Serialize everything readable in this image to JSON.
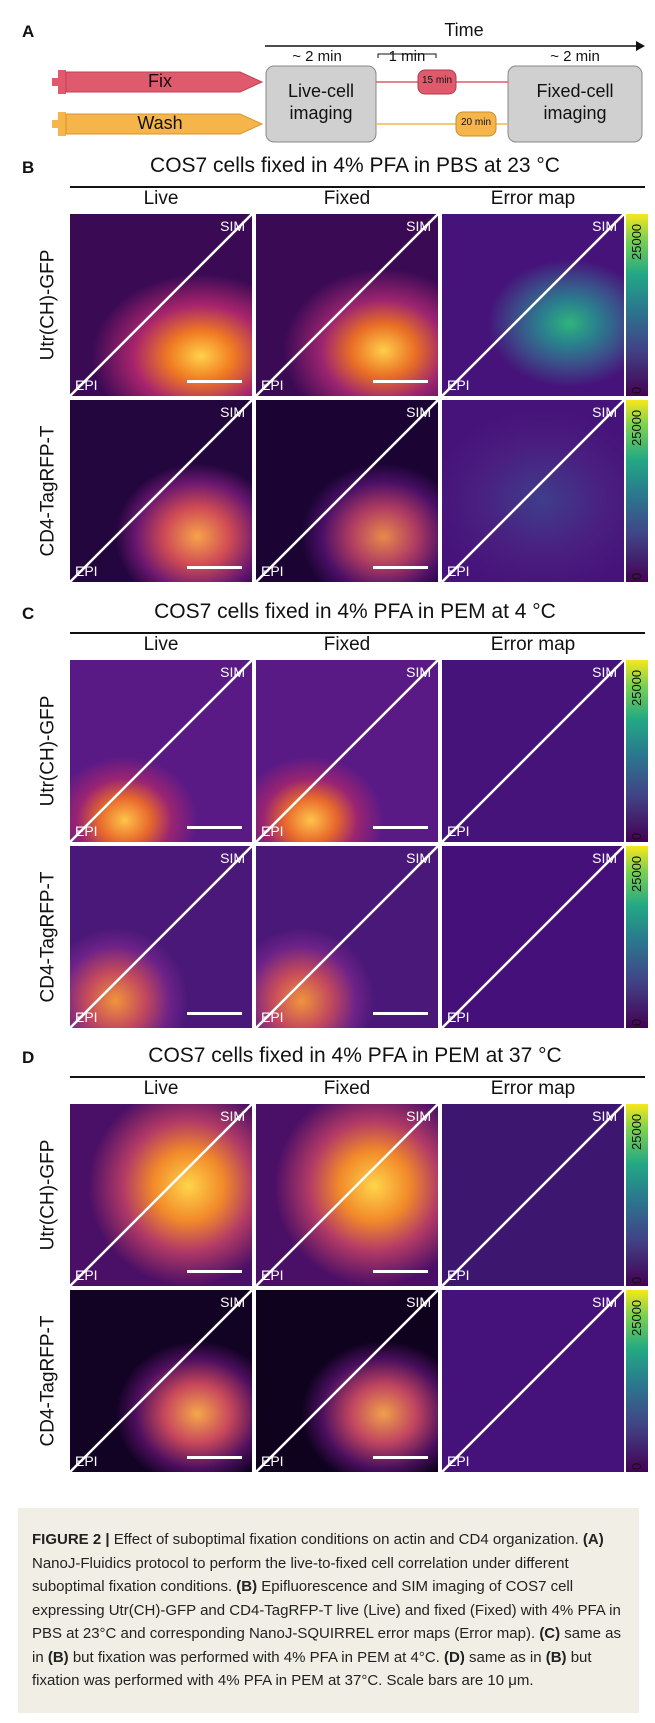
{
  "panel_a": {
    "letter": "A",
    "time_label": "Time",
    "dur_left": "~ 2 min",
    "dur_mid": "1 min",
    "dur_right": "~ 2 min",
    "fix_label": "Fix",
    "wash_label": "Wash",
    "live_box": [
      "Live-cell",
      "imaging"
    ],
    "fixed_box": [
      "Fixed-cell",
      "imaging"
    ],
    "fix_time": "15 min",
    "wash_time": "20 min",
    "colors": {
      "fix": "#e05a6d",
      "wash": "#f5b54a",
      "box": "#d0d0d0"
    }
  },
  "columns": [
    "Live",
    "Fixed",
    "Error map"
  ],
  "rows": [
    "Utr(CH)-GFP",
    "CD4-TagRFP-T"
  ],
  "overlay": {
    "sim": "SIM",
    "epi": "EPI"
  },
  "colorbar": {
    "max": "25000",
    "min": "0"
  },
  "sections": [
    {
      "letter": "B",
      "title": "COS7 cells fixed in 4% PFA in PBS at 23 °C"
    },
    {
      "letter": "C",
      "title": "COS7 cells fixed in 4% PFA in PEM at 4 °C"
    },
    {
      "letter": "D",
      "title": "COS7 cells fixed in 4% PFA in PEM at 37 °C"
    }
  ],
  "caption": {
    "label": "FIGURE 2 |",
    "lead": " Effect of suboptimal fixation conditions on actin and CD4 organization. ",
    "a_ref": "(A)",
    "a_text": " NanoJ-Fluidics protocol to perform the live-to-fixed cell correlation under different suboptimal fixation conditions. ",
    "b_ref": "(B)",
    "b_text": " Epifluorescence and SIM imaging of COS7 cell expressing Utr(CH)-GFP and CD4-TagRFP-T live (Live) and fixed (Fixed) with 4% PFA in PBS at 23°C and corresponding NanoJ-SQUIRREL error maps (Error map). ",
    "c_ref": "(C)",
    "c_text": " same as in ",
    "c_ref2": "(B)",
    "c_text2": " but fixation was performed with 4% PFA in PEM at 4°C. ",
    "d_ref": "(D)",
    "d_text": " same as in ",
    "d_ref2": "(B)",
    "d_text2": " but fixation was performed with 4% PFA in PEM at 37°C. Scale bars are 10 μm."
  }
}
